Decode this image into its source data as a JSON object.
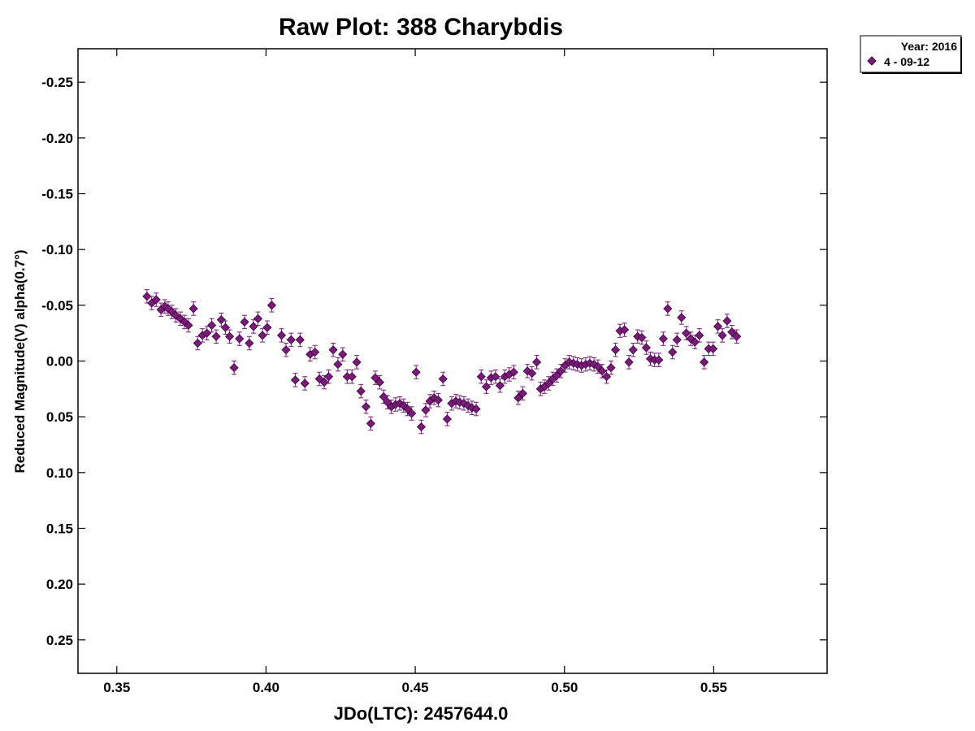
{
  "colors": {
    "marker": "#7b1a7b",
    "marker_stroke": "#3a003a",
    "errorbar": "#7b1a7b",
    "axis": "#000000"
  },
  "chart_data": {
    "type": "scatter",
    "title": "Raw Plot: 388 Charybdis",
    "xlabel": "JDo(LTC): 2457644.0",
    "ylabel": "Reduced Magnitude(V) alpha(0.7°)",
    "xlim": [
      0.337,
      0.588
    ],
    "ylim": [
      -0.28,
      0.28
    ],
    "y_inverted": true,
    "x_ticks": [
      {
        "value": 0.35,
        "label": "0.35"
      },
      {
        "value": 0.4,
        "label": "0.40"
      },
      {
        "value": 0.45,
        "label": "0.45"
      },
      {
        "value": 0.5,
        "label": "0.50"
      },
      {
        "value": 0.55,
        "label": "0.55"
      }
    ],
    "y_ticks": [
      {
        "value": -0.25,
        "label": "-0.25"
      },
      {
        "value": -0.2,
        "label": "-0.20"
      },
      {
        "value": -0.15,
        "label": "-0.15"
      },
      {
        "value": -0.1,
        "label": "-0.10"
      },
      {
        "value": -0.05,
        "label": "-0.05"
      },
      {
        "value": 0.0,
        "label": "0.00"
      },
      {
        "value": 0.05,
        "label": "0.05"
      },
      {
        "value": 0.1,
        "label": "0.10"
      },
      {
        "value": 0.15,
        "label": "0.15"
      },
      {
        "value": 0.2,
        "label": "0.20"
      },
      {
        "value": 0.25,
        "label": "0.25"
      }
    ],
    "legend": {
      "placement": "outside-top-right",
      "header": "Year: 2016",
      "entries": [
        "4 - 09-12"
      ]
    },
    "error": 0.006,
    "series": [
      {
        "name": "4 - 09-12",
        "marker": "diamond",
        "points": [
          [
            0.3601,
            -0.058
          ],
          [
            0.3617,
            -0.052
          ],
          [
            0.3632,
            -0.055
          ],
          [
            0.3648,
            -0.046
          ],
          [
            0.3661,
            -0.049
          ],
          [
            0.3672,
            -0.047
          ],
          [
            0.3685,
            -0.044
          ],
          [
            0.3698,
            -0.041
          ],
          [
            0.3713,
            -0.038
          ],
          [
            0.3727,
            -0.035
          ],
          [
            0.374,
            -0.032
          ],
          [
            0.3757,
            -0.047
          ],
          [
            0.3771,
            -0.016
          ],
          [
            0.3787,
            -0.023
          ],
          [
            0.3802,
            -0.025
          ],
          [
            0.3818,
            -0.032
          ],
          [
            0.3833,
            -0.022
          ],
          [
            0.385,
            -0.037
          ],
          [
            0.3864,
            -0.03
          ],
          [
            0.3878,
            -0.022
          ],
          [
            0.3893,
            0.006
          ],
          [
            0.3911,
            -0.02
          ],
          [
            0.3928,
            -0.035
          ],
          [
            0.3944,
            -0.016
          ],
          [
            0.3958,
            -0.031
          ],
          [
            0.3973,
            -0.038
          ],
          [
            0.3988,
            -0.023
          ],
          [
            0.4004,
            -0.03
          ],
          [
            0.4019,
            -0.05
          ],
          [
            0.4052,
            -0.023
          ],
          [
            0.4067,
            -0.01
          ],
          [
            0.4084,
            -0.019
          ],
          [
            0.4098,
            0.017
          ],
          [
            0.4114,
            -0.019
          ],
          [
            0.413,
            0.02
          ],
          [
            0.4148,
            -0.006
          ],
          [
            0.4164,
            -0.008
          ],
          [
            0.4179,
            0.016
          ],
          [
            0.4195,
            0.019
          ],
          [
            0.421,
            0.014
          ],
          [
            0.4225,
            -0.01
          ],
          [
            0.4241,
            0.003
          ],
          [
            0.4257,
            -0.006
          ],
          [
            0.4272,
            0.014
          ],
          [
            0.4288,
            0.014
          ],
          [
            0.4304,
            0.001
          ],
          [
            0.4318,
            0.027
          ],
          [
            0.4335,
            0.041
          ],
          [
            0.4351,
            0.056
          ],
          [
            0.4366,
            0.015
          ],
          [
            0.4381,
            0.019
          ],
          [
            0.4394,
            0.032
          ],
          [
            0.4407,
            0.037
          ],
          [
            0.442,
            0.041
          ],
          [
            0.4434,
            0.039
          ],
          [
            0.4448,
            0.038
          ],
          [
            0.4461,
            0.04
          ],
          [
            0.4474,
            0.043
          ],
          [
            0.4488,
            0.047
          ],
          [
            0.4503,
            0.01
          ],
          [
            0.452,
            0.059
          ],
          [
            0.4535,
            0.044
          ],
          [
            0.4549,
            0.036
          ],
          [
            0.4563,
            0.033
          ],
          [
            0.4577,
            0.035
          ],
          [
            0.4593,
            0.016
          ],
          [
            0.4607,
            0.052
          ],
          [
            0.4622,
            0.038
          ],
          [
            0.4636,
            0.036
          ],
          [
            0.4649,
            0.037
          ],
          [
            0.4663,
            0.038
          ],
          [
            0.4677,
            0.04
          ],
          [
            0.469,
            0.042
          ],
          [
            0.4704,
            0.043
          ],
          [
            0.4721,
            0.014
          ],
          [
            0.4738,
            0.023
          ],
          [
            0.4754,
            0.015
          ],
          [
            0.4769,
            0.014
          ],
          [
            0.4784,
            0.022
          ],
          [
            0.48,
            0.014
          ],
          [
            0.4815,
            0.012
          ],
          [
            0.483,
            0.01
          ],
          [
            0.4845,
            0.033
          ],
          [
            0.486,
            0.029
          ],
          [
            0.4876,
            0.009
          ],
          [
            0.4891,
            0.011
          ],
          [
            0.4907,
            0.001
          ],
          [
            0.492,
            0.025
          ],
          [
            0.4933,
            0.023
          ],
          [
            0.4947,
            0.02
          ],
          [
            0.4961,
            0.016
          ],
          [
            0.4974,
            0.013
          ],
          [
            0.4988,
            0.009
          ],
          [
            0.5002,
            0.004
          ],
          [
            0.5016,
            0.001
          ],
          [
            0.503,
            0.002
          ],
          [
            0.5043,
            0.003
          ],
          [
            0.5057,
            0.004
          ],
          [
            0.5071,
            0.003
          ],
          [
            0.5085,
            0.002
          ],
          [
            0.5099,
            0.003
          ],
          [
            0.5112,
            0.005
          ],
          [
            0.5126,
            0.009
          ],
          [
            0.5141,
            0.014
          ],
          [
            0.5156,
            0.006
          ],
          [
            0.5171,
            -0.01
          ],
          [
            0.5186,
            -0.027
          ],
          [
            0.5201,
            -0.028
          ],
          [
            0.5216,
            0.001
          ],
          [
            0.523,
            -0.01
          ],
          [
            0.5245,
            -0.022
          ],
          [
            0.5259,
            -0.021
          ],
          [
            0.5274,
            -0.012
          ],
          [
            0.5288,
            -0.002
          ],
          [
            0.5302,
            -0.001
          ],
          [
            0.5316,
            -0.001
          ],
          [
            0.5331,
            -0.02
          ],
          [
            0.5346,
            -0.047
          ],
          [
            0.5362,
            -0.008
          ],
          [
            0.5377,
            -0.019
          ],
          [
            0.5392,
            -0.039
          ],
          [
            0.5408,
            -0.025
          ],
          [
            0.5423,
            -0.02
          ],
          [
            0.5437,
            -0.017
          ],
          [
            0.5452,
            -0.023
          ],
          [
            0.5468,
            0.001
          ],
          [
            0.5483,
            -0.011
          ],
          [
            0.5498,
            -0.011
          ],
          [
            0.5514,
            -0.031
          ],
          [
            0.5529,
            -0.023
          ],
          [
            0.5545,
            -0.036
          ],
          [
            0.5561,
            -0.026
          ],
          [
            0.5577,
            -0.022
          ]
        ]
      }
    ]
  }
}
